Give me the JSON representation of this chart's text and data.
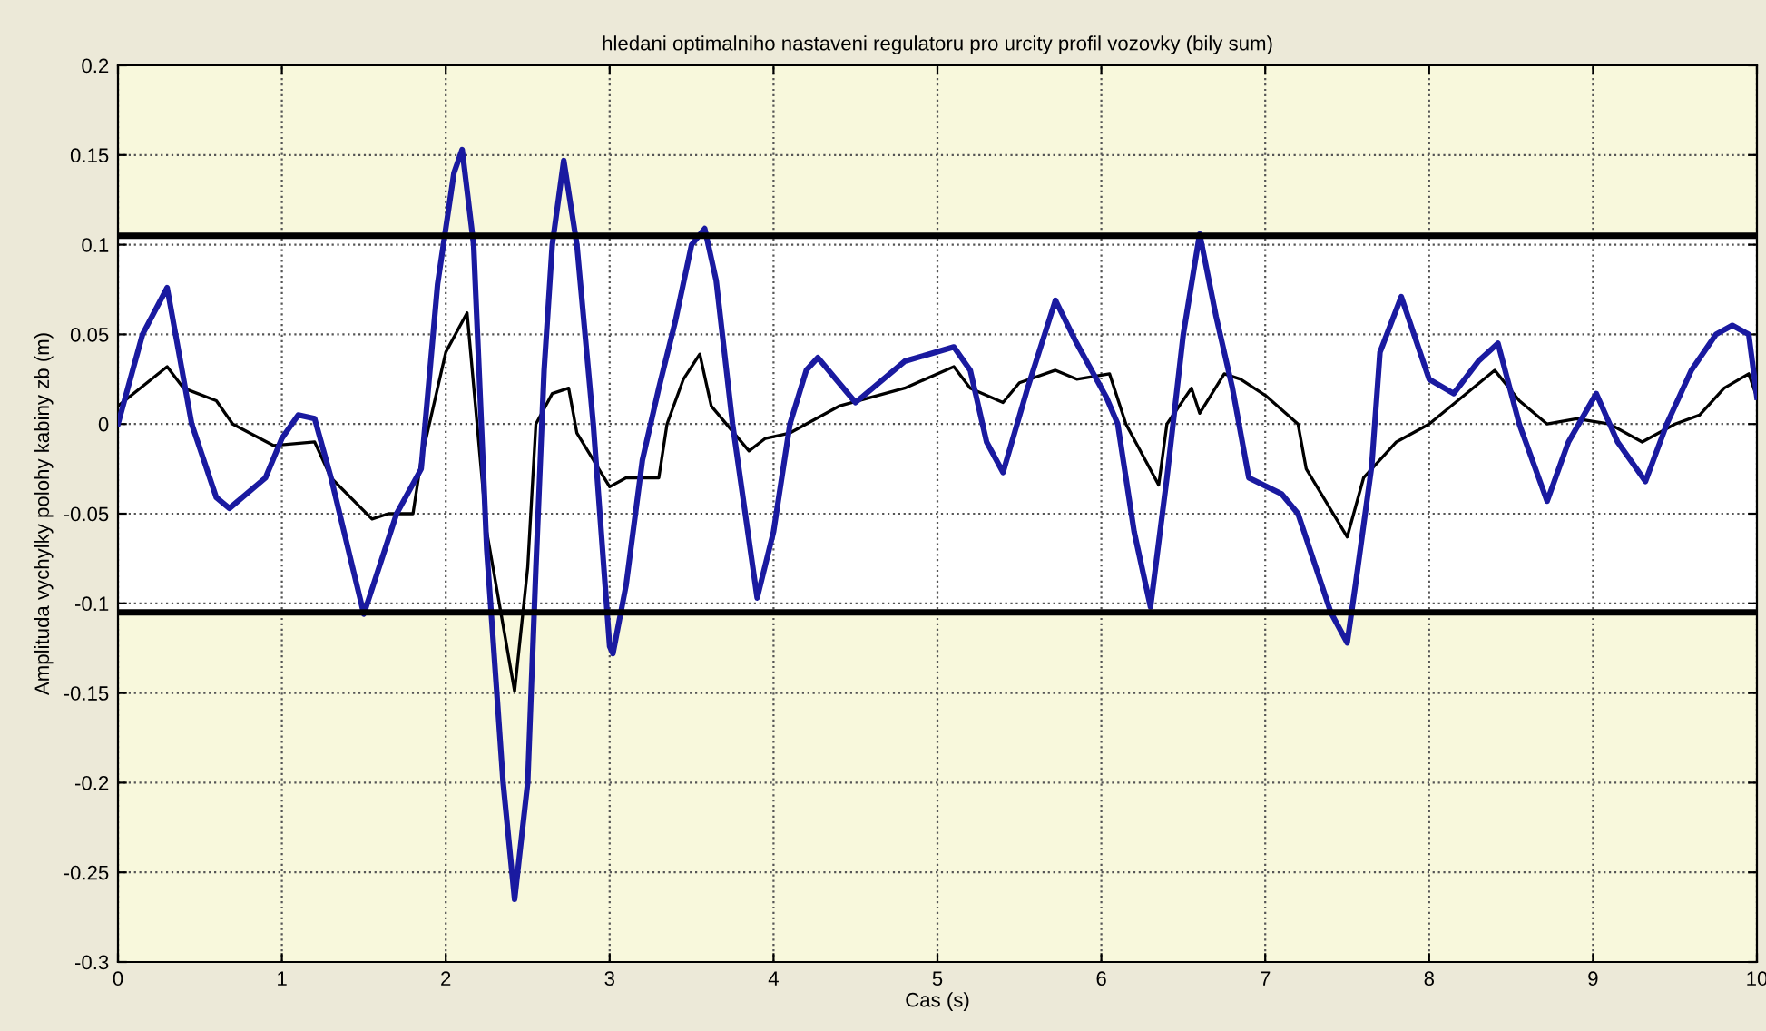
{
  "chart_data": {
    "type": "line",
    "title": "hledani optimalniho nastaveni regulatoru pro urcity profil vozovky (bily sum)",
    "xlabel": "Cas (s)",
    "ylabel": "Amplituda vychylky polohy kabiny zb (m)",
    "xlim": [
      0,
      10
    ],
    "ylim": [
      -0.3,
      0.2
    ],
    "xticks": [
      0,
      1,
      2,
      3,
      4,
      5,
      6,
      7,
      8,
      9,
      10
    ],
    "yticks": [
      -0.3,
      -0.25,
      -0.2,
      -0.15,
      -0.1,
      -0.05,
      0,
      0.05,
      0.1,
      0.15,
      0.2
    ],
    "grid": true,
    "line_style": "solid",
    "bands": [
      {
        "axis": "y",
        "from": 0.105,
        "to": 0.2,
        "color": "#f8f8dc"
      },
      {
        "axis": "y",
        "from": -0.3,
        "to": -0.105,
        "color": "#f8f8dc"
      }
    ],
    "ref_lines": [
      {
        "axis": "y",
        "value": 0.105,
        "color": "#000000"
      },
      {
        "axis": "y",
        "value": -0.105,
        "color": "#000000"
      }
    ],
    "series": [
      {
        "color": "#1a1aa0",
        "x": [
          0,
          0.15,
          0.3,
          0.45,
          0.6,
          0.68,
          0.9,
          1.0,
          1.1,
          1.2,
          1.3,
          1.5,
          1.7,
          1.85,
          1.95,
          2.05,
          2.1,
          2.17,
          2.25,
          2.35,
          2.42,
          2.5,
          2.55,
          2.6,
          2.65,
          2.72,
          2.8,
          2.9,
          3.0,
          3.02,
          3.1,
          3.2,
          3.3,
          3.4,
          3.5,
          3.58,
          3.65,
          3.75,
          3.9,
          4.0,
          4.1,
          4.2,
          4.27,
          4.5,
          4.8,
          5.1,
          5.2,
          5.3,
          5.4,
          5.55,
          5.72,
          5.85,
          6.03,
          6.1,
          6.2,
          6.3,
          6.4,
          6.5,
          6.6,
          6.7,
          6.8,
          6.9,
          7.1,
          7.2,
          7.4,
          7.5,
          7.55,
          7.65,
          7.7,
          7.83,
          8.0,
          8.15,
          8.3,
          8.42,
          8.55,
          8.72,
          8.85,
          9.02,
          9.15,
          9.32,
          9.45,
          9.6,
          9.75,
          9.85,
          9.95,
          10.0
        ],
        "values": [
          0,
          0.05,
          0.076,
          0.0,
          -0.041,
          -0.047,
          -0.03,
          -0.008,
          0.005,
          0.003,
          -0.03,
          -0.106,
          -0.05,
          -0.025,
          0.078,
          0.14,
          0.153,
          0.1,
          -0.07,
          -0.2,
          -0.265,
          -0.2,
          -0.08,
          0.03,
          0.1,
          0.147,
          0.1,
          0.0,
          -0.124,
          -0.128,
          -0.09,
          -0.02,
          0.02,
          0.057,
          0.1,
          0.109,
          0.08,
          0.0,
          -0.097,
          -0.06,
          0.0,
          0.03,
          0.037,
          0.012,
          0.035,
          0.043,
          0.03,
          -0.01,
          -0.027,
          0.02,
          0.069,
          0.045,
          0.015,
          0.0,
          -0.06,
          -0.102,
          -0.03,
          0.05,
          0.106,
          0.06,
          0.02,
          -0.03,
          -0.039,
          -0.05,
          -0.105,
          -0.122,
          -0.09,
          -0.023,
          0.04,
          0.071,
          0.025,
          0.017,
          0.035,
          0.045,
          0.0,
          -0.043,
          -0.01,
          0.017,
          -0.01,
          -0.032,
          0.0,
          0.03,
          0.05,
          0.055,
          0.05,
          0.015
        ]
      },
      {
        "color": "#000000",
        "x": [
          0,
          0.3,
          0.4,
          0.6,
          0.7,
          0.95,
          1.2,
          1.3,
          1.55,
          1.65,
          1.8,
          1.85,
          2.0,
          2.13,
          2.25,
          2.42,
          2.5,
          2.55,
          2.65,
          2.75,
          2.8,
          2.9,
          3.0,
          3.1,
          3.3,
          3.35,
          3.45,
          3.55,
          3.62,
          3.85,
          3.95,
          4.1,
          4.4,
          4.8,
          5.1,
          5.2,
          5.4,
          5.5,
          5.72,
          5.85,
          6.05,
          6.15,
          6.35,
          6.4,
          6.55,
          6.6,
          6.75,
          6.85,
          7.0,
          7.2,
          7.25,
          7.5,
          7.6,
          7.8,
          8.0,
          8.4,
          8.55,
          8.72,
          8.9,
          9.1,
          9.3,
          9.5,
          9.65,
          9.8,
          9.95,
          10.0
        ],
        "values": [
          0.01,
          0.032,
          0.02,
          0.013,
          0.0,
          -0.012,
          -0.01,
          -0.03,
          -0.053,
          -0.05,
          -0.05,
          -0.02,
          0.04,
          0.062,
          -0.06,
          -0.149,
          -0.08,
          0.0,
          0.017,
          0.02,
          -0.005,
          -0.02,
          -0.035,
          -0.03,
          -0.03,
          0.0,
          0.025,
          0.039,
          0.01,
          -0.015,
          -0.008,
          -0.005,
          0.01,
          0.02,
          0.032,
          0.02,
          0.012,
          0.023,
          0.03,
          0.025,
          0.028,
          0.0,
          -0.034,
          0.0,
          0.02,
          0.006,
          0.028,
          0.025,
          0.016,
          0.0,
          -0.025,
          -0.063,
          -0.03,
          -0.01,
          0.0,
          0.03,
          0.013,
          0.0,
          0.003,
          0.0,
          -0.01,
          0.0,
          0.005,
          0.02,
          0.028,
          0.015
        ]
      }
    ]
  }
}
